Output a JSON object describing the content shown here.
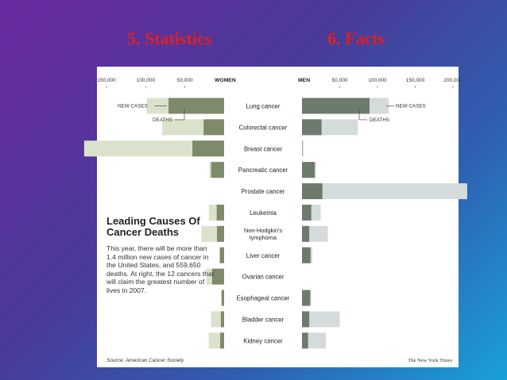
{
  "slide": {
    "title_left": "5. Statistics",
    "title_right": "6. Facts"
  },
  "chart_data": {
    "type": "bar",
    "title": "Leading Causes Of Cancer Deaths",
    "description": "This year, there will be more than 1.4 million new cases of cancer in the United States, and 559,650 deaths. At right, the 12 cancers that will claim the greatest number of lives in 2007.",
    "women_label": "WOMEN",
    "men_label": "MEN",
    "women_axis_ticks": [
      "150,000",
      "100,000",
      "50,000"
    ],
    "men_axis_ticks": [
      "50,000",
      "100,000",
      "150,000",
      "200,000"
    ],
    "women_xlim": [
      0,
      170000
    ],
    "men_xlim": [
      0,
      210000
    ],
    "legend_new_cases": "NEW CASES",
    "legend_deaths": "DEATHS",
    "categories": [
      "Lung cancer",
      "Colorectal cancer",
      "Breast cancer",
      "Pancreatic cancer",
      "Prostate cancer",
      "Leukemia",
      "Non-Hodgkin's lymphoma",
      "Liver cancer",
      "Ovarian cancer",
      "Esophageal cancer",
      "Bladder cancer",
      "Kidney cancer"
    ],
    "series": [
      {
        "name": "Women new cases",
        "values": [
          98620,
          79130,
          178480,
          18830,
          0,
          19440,
          28990,
          5510,
          22430,
          3730,
          16730,
          19600
        ]
      },
      {
        "name": "Women deaths",
        "values": [
          70880,
          26180,
          40460,
          16530,
          0,
          9470,
          9060,
          5500,
          15280,
          3130,
          4120,
          5000
        ]
      },
      {
        "name": "Men new cases",
        "values": [
          114760,
          74000,
          2030,
          18830,
          218890,
          24800,
          34200,
          13650,
          0,
          12130,
          50040,
          31590
        ]
      },
      {
        "name": "Men deaths",
        "values": [
          89510,
          26000,
          450,
          16840,
          27050,
          12320,
          9600,
          11280,
          0,
          10900,
          9630,
          8080
        ]
      }
    ],
    "source": "Source: American Cancer Society",
    "credit": "The New York Times"
  }
}
